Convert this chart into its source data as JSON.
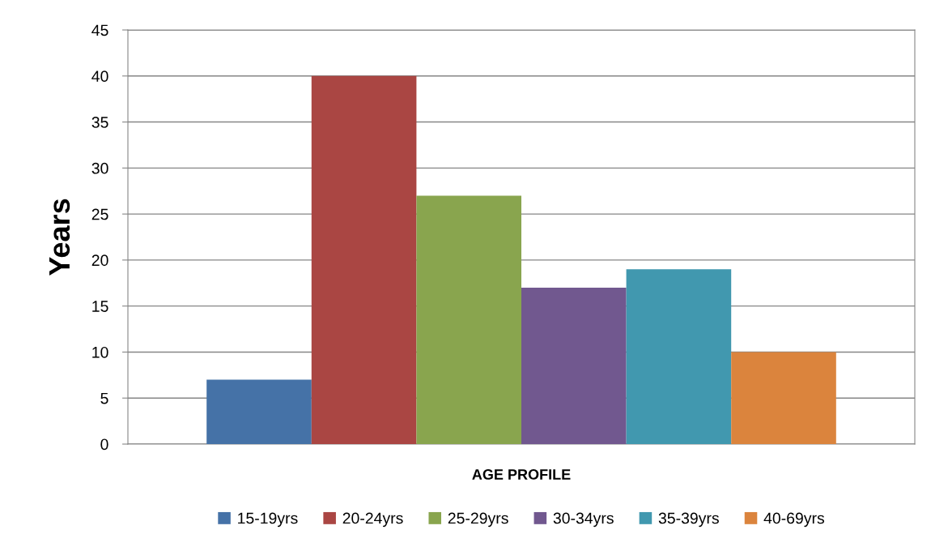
{
  "chart_data": {
    "type": "bar",
    "ylabel": "Years",
    "categories": [
      "AGE PROFILE"
    ],
    "series": [
      {
        "name": "15-19yrs",
        "color": "#4572a7",
        "values": [
          7
        ]
      },
      {
        "name": "20-24yrs",
        "color": "#aa4643",
        "values": [
          40
        ]
      },
      {
        "name": "25-29yrs",
        "color": "#89a54e",
        "values": [
          27
        ]
      },
      {
        "name": "30-34yrs",
        "color": "#71588f",
        "values": [
          17
        ]
      },
      {
        "name": "35-39yrs",
        "color": "#4198af",
        "values": [
          19
        ]
      },
      {
        "name": "40-69yrs",
        "color": "#db843d",
        "values": [
          10
        ]
      }
    ],
    "ylim": [
      0,
      45
    ],
    "yticks": [
      0,
      5,
      10,
      15,
      20,
      25,
      30,
      35,
      40,
      45
    ],
    "grid": "y",
    "legend": "bottom"
  }
}
